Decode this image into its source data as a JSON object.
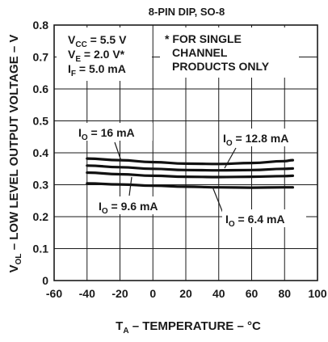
{
  "chart_data": {
    "type": "line",
    "title": "8-PIN DIP, SO-8",
    "xlabel": {
      "main": "T",
      "sub": "A",
      "rest": " – TEMPERATURE – °C"
    },
    "ylabel": {
      "main": "V",
      "sub": "OL",
      "rest": " – LOW LEVEL OUTPUT VOLTAGE – V"
    },
    "xlim": [
      -60,
      100
    ],
    "ylim": [
      0,
      0.8
    ],
    "x_ticks": [
      "-60",
      "-40",
      "-20",
      "0",
      "20",
      "40",
      "60",
      "80",
      "100"
    ],
    "y_ticks": [
      "0",
      "0.1",
      "0.2",
      "0.3",
      "0.4",
      "0.5",
      "0.6",
      "0.7",
      "0.8"
    ],
    "grid": true,
    "conditions": [
      {
        "main": "V",
        "sub": "CC",
        "rest": " = 5.5 V"
      },
      {
        "main": "V",
        "sub": "E",
        "rest": " = 2.0 V*"
      },
      {
        "main": "I",
        "sub": "F",
        "rest": " = 5.0 mA"
      }
    ],
    "footnote": [
      "* FOR SINGLE",
      "CHANNEL",
      "PRODUCTS ONLY"
    ],
    "series": [
      {
        "name": {
          "main": "I",
          "sub": "O",
          "rest": " = 16 mA"
        },
        "x": [
          -40,
          -20,
          0,
          20,
          40,
          60,
          80,
          85
        ],
        "y": [
          0.382,
          0.377,
          0.371,
          0.366,
          0.365,
          0.368,
          0.374,
          0.377
        ]
      },
      {
        "name": {
          "main": "I",
          "sub": "O",
          "rest": " = 12.8 mA"
        },
        "x": [
          -40,
          -20,
          0,
          20,
          40,
          60,
          80,
          85
        ],
        "y": [
          0.36,
          0.355,
          0.35,
          0.346,
          0.345,
          0.346,
          0.35,
          0.351
        ]
      },
      {
        "name": {
          "main": "I",
          "sub": "O",
          "rest": " = 9.6 mA"
        },
        "x": [
          -40,
          -20,
          0,
          20,
          40,
          60,
          80,
          85
        ],
        "y": [
          0.338,
          0.333,
          0.328,
          0.325,
          0.324,
          0.325,
          0.327,
          0.328
        ]
      },
      {
        "name": {
          "main": "I",
          "sub": "O",
          "rest": " = 6.4 mA"
        },
        "x": [
          -40,
          -20,
          0,
          20,
          40,
          60,
          80,
          85
        ],
        "y": [
          0.304,
          0.301,
          0.297,
          0.294,
          0.292,
          0.291,
          0.292,
          0.292
        ]
      }
    ]
  }
}
